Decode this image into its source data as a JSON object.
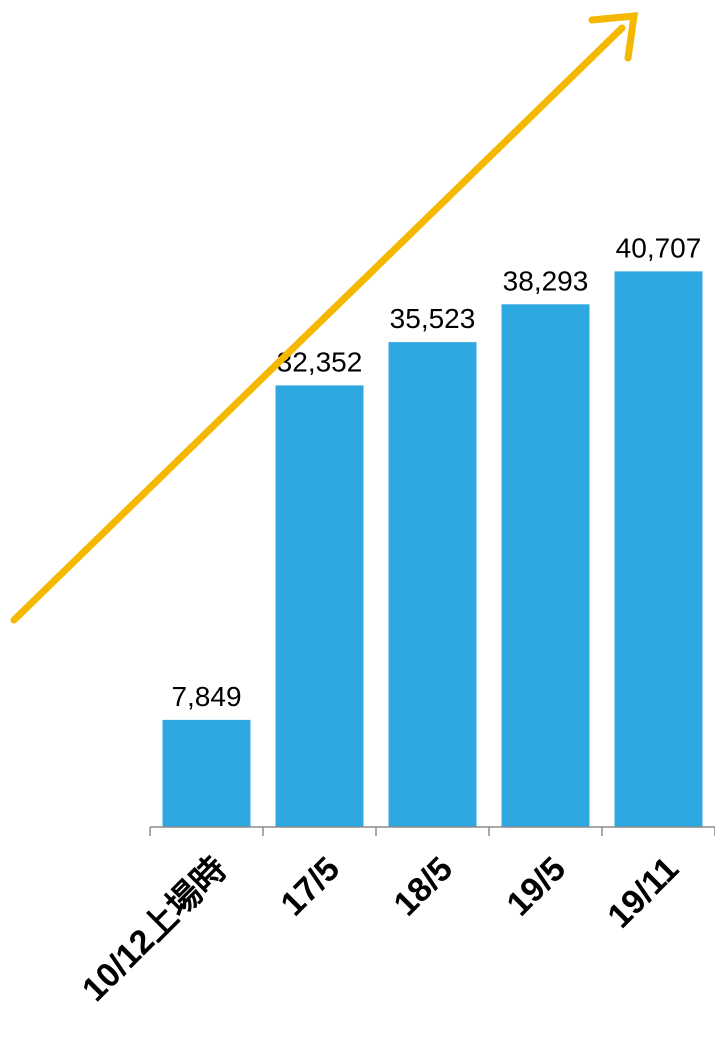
{
  "chart_data": {
    "type": "bar",
    "categories": [
      "10/12上場時",
      "17/5",
      "18/5",
      "19/5",
      "19/11"
    ],
    "values": [
      7849,
      32352,
      35523,
      38293,
      40707
    ],
    "data_labels": [
      "7,849",
      "32,352",
      "35,523",
      "38,293",
      "40,707"
    ],
    "ylim": [
      0,
      45000
    ],
    "grid": false,
    "legend": "none",
    "trend_arrow": true,
    "colors": {
      "bar": "#2EA8E0",
      "arrow": "#F5B800",
      "axis": "#8C8C8C",
      "text": "#000000"
    }
  }
}
